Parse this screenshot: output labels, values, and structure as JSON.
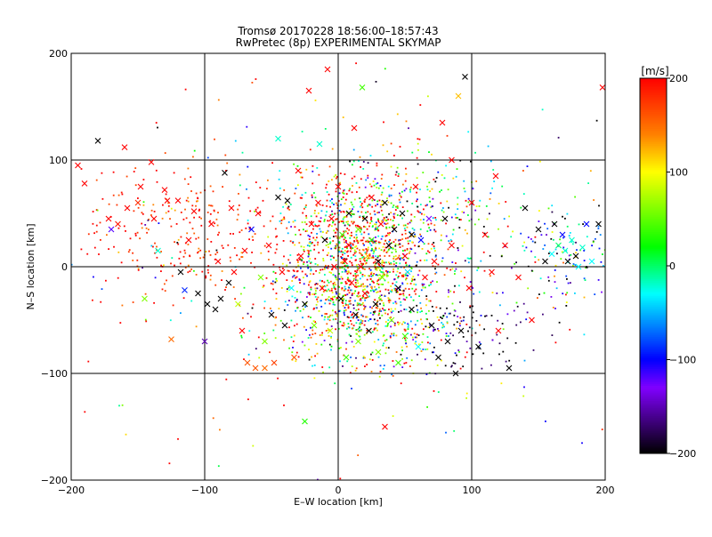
{
  "chart_data": {
    "type": "scatter",
    "title": "Tromsø 20170228 18:56:00–18:57:43",
    "subtitle": "RwPretec (8p) EXPERIMENTAL SKYMAP",
    "xlabel": "E–W location [km]",
    "ylabel": "N–S location [km]",
    "xlim": [
      -200,
      200
    ],
    "ylim": [
      -200,
      200
    ],
    "xticks": [
      -200,
      -100,
      0,
      100,
      200
    ],
    "yticks": [
      -200,
      -100,
      0,
      100,
      200
    ],
    "xtick_labels": [
      "−200",
      "−100",
      "0",
      "100",
      "200"
    ],
    "ytick_labels": [
      "−200",
      "−100",
      "0",
      "100",
      "200"
    ],
    "grid": true,
    "colorbar": {
      "unit_label": "[m/s]",
      "min": -200,
      "max": 200,
      "ticks": [
        200,
        100,
        0,
        -100,
        -200
      ],
      "tick_labels": [
        "200",
        "100",
        "0",
        "−100",
        "−200"
      ],
      "colormap_stops": [
        {
          "value": -200,
          "color": "#000000"
        },
        {
          "value": -130,
          "color": "#8000ff"
        },
        {
          "value": -100,
          "color": "#0000ff"
        },
        {
          "value": -30,
          "color": "#00ffff"
        },
        {
          "value": 20,
          "color": "#00ff00"
        },
        {
          "value": 100,
          "color": "#ffff00"
        },
        {
          "value": 140,
          "color": "#ff8000"
        },
        {
          "value": 200,
          "color": "#ff0000"
        }
      ]
    },
    "markers": [
      {
        "x": -195,
        "y": 95,
        "v": 200,
        "m": "x"
      },
      {
        "x": -190,
        "y": 78,
        "v": 200,
        "m": "x"
      },
      {
        "x": -180,
        "y": 118,
        "v": -200,
        "m": "x"
      },
      {
        "x": -172,
        "y": 45,
        "v": 200,
        "m": "x"
      },
      {
        "x": -170,
        "y": 35,
        "v": -120,
        "m": "x"
      },
      {
        "x": -165,
        "y": 40,
        "v": 190,
        "m": "x"
      },
      {
        "x": -160,
        "y": 112,
        "v": 200,
        "m": "x"
      },
      {
        "x": -158,
        "y": 55,
        "v": 200,
        "m": "x"
      },
      {
        "x": -150,
        "y": 60,
        "v": 180,
        "m": "x"
      },
      {
        "x": -148,
        "y": 75,
        "v": 200,
        "m": "x"
      },
      {
        "x": -145,
        "y": -30,
        "v": 60,
        "m": "x"
      },
      {
        "x": -140,
        "y": 98,
        "v": 200,
        "m": "x"
      },
      {
        "x": -138,
        "y": 45,
        "v": 200,
        "m": "x"
      },
      {
        "x": -135,
        "y": 15,
        "v": -20,
        "m": "x"
      },
      {
        "x": -130,
        "y": 72,
        "v": 200,
        "m": "x"
      },
      {
        "x": -128,
        "y": 62,
        "v": 200,
        "m": "x"
      },
      {
        "x": -125,
        "y": -68,
        "v": 150,
        "m": "x"
      },
      {
        "x": -120,
        "y": 62,
        "v": 200,
        "m": "x"
      },
      {
        "x": -118,
        "y": -5,
        "v": -200,
        "m": "x"
      },
      {
        "x": -115,
        "y": -22,
        "v": -90,
        "m": "x"
      },
      {
        "x": -112,
        "y": 25,
        "v": 200,
        "m": "x"
      },
      {
        "x": -108,
        "y": 52,
        "v": 200,
        "m": "x"
      },
      {
        "x": -105,
        "y": -25,
        "v": -200,
        "m": "x"
      },
      {
        "x": -100,
        "y": -70,
        "v": -150,
        "m": "x"
      },
      {
        "x": -98,
        "y": -35,
        "v": -200,
        "m": "x"
      },
      {
        "x": -95,
        "y": 40,
        "v": 200,
        "m": "x"
      },
      {
        "x": -92,
        "y": -40,
        "v": -200,
        "m": "x"
      },
      {
        "x": -90,
        "y": 5,
        "v": 200,
        "m": "x"
      },
      {
        "x": -88,
        "y": -30,
        "v": -200,
        "m": "x"
      },
      {
        "x": -85,
        "y": 88,
        "v": -200,
        "m": "x"
      },
      {
        "x": -82,
        "y": -15,
        "v": -200,
        "m": "x"
      },
      {
        "x": -80,
        "y": 55,
        "v": 200,
        "m": "x"
      },
      {
        "x": -78,
        "y": -5,
        "v": 200,
        "m": "x"
      },
      {
        "x": -75,
        "y": -35,
        "v": 80,
        "m": "x"
      },
      {
        "x": -72,
        "y": -60,
        "v": 200,
        "m": "x"
      },
      {
        "x": -70,
        "y": 15,
        "v": 200,
        "m": "x"
      },
      {
        "x": -68,
        "y": -90,
        "v": 160,
        "m": "x"
      },
      {
        "x": -65,
        "y": 35,
        "v": -100,
        "m": "x"
      },
      {
        "x": -62,
        "y": -95,
        "v": 160,
        "m": "x"
      },
      {
        "x": -60,
        "y": 50,
        "v": 200,
        "m": "x"
      },
      {
        "x": -58,
        "y": -10,
        "v": 60,
        "m": "x"
      },
      {
        "x": -55,
        "y": -70,
        "v": 60,
        "m": "x"
      },
      {
        "x": -55,
        "y": -95,
        "v": 150,
        "m": "x"
      },
      {
        "x": -52,
        "y": 20,
        "v": 200,
        "m": "x"
      },
      {
        "x": -50,
        "y": -45,
        "v": -200,
        "m": "x"
      },
      {
        "x": -48,
        "y": -90,
        "v": 170,
        "m": "x"
      },
      {
        "x": -45,
        "y": 65,
        "v": -200,
        "m": "x"
      },
      {
        "x": -45,
        "y": 120,
        "v": -20,
        "m": "x"
      },
      {
        "x": -42,
        "y": -5,
        "v": 200,
        "m": "x"
      },
      {
        "x": -40,
        "y": -55,
        "v": -200,
        "m": "x"
      },
      {
        "x": -38,
        "y": 62,
        "v": -200,
        "m": "x"
      },
      {
        "x": -35,
        "y": -20,
        "v": -30,
        "m": "x"
      },
      {
        "x": -33,
        "y": -85,
        "v": 160,
        "m": "x"
      },
      {
        "x": -30,
        "y": 90,
        "v": 200,
        "m": "x"
      },
      {
        "x": -28,
        "y": 10,
        "v": 200,
        "m": "x"
      },
      {
        "x": -25,
        "y": -35,
        "v": -200,
        "m": "x"
      },
      {
        "x": -25,
        "y": -145,
        "v": 30,
        "m": "x"
      },
      {
        "x": -22,
        "y": 165,
        "v": 200,
        "m": "x"
      },
      {
        "x": -20,
        "y": 40,
        "v": 200,
        "m": "x"
      },
      {
        "x": -18,
        "y": -55,
        "v": 60,
        "m": "x"
      },
      {
        "x": -15,
        "y": 60,
        "v": 200,
        "m": "x"
      },
      {
        "x": -14,
        "y": 115,
        "v": -20,
        "m": "x"
      },
      {
        "x": -12,
        "y": -20,
        "v": 200,
        "m": "x"
      },
      {
        "x": -10,
        "y": 25,
        "v": -200,
        "m": "x"
      },
      {
        "x": -8,
        "y": 185,
        "v": 200,
        "m": "x"
      },
      {
        "x": -6,
        "y": -60,
        "v": 80,
        "m": "x"
      },
      {
        "x": -5,
        "y": 45,
        "v": 200,
        "m": "x"
      },
      {
        "x": -3,
        "y": 0,
        "v": 200,
        "m": "x"
      },
      {
        "x": 0,
        "y": 75,
        "v": 200,
        "m": "x"
      },
      {
        "x": 2,
        "y": -30,
        "v": -200,
        "m": "x"
      },
      {
        "x": 3,
        "y": 30,
        "v": 40,
        "m": "x"
      },
      {
        "x": 5,
        "y": 5,
        "v": 200,
        "m": "x"
      },
      {
        "x": 6,
        "y": -85,
        "v": 40,
        "m": "x"
      },
      {
        "x": 8,
        "y": 50,
        "v": -200,
        "m": "x"
      },
      {
        "x": 8,
        "y": 20,
        "v": 200,
        "m": "x"
      },
      {
        "x": 10,
        "y": -15,
        "v": 200,
        "m": "x"
      },
      {
        "x": 12,
        "y": 130,
        "v": 200,
        "m": "x"
      },
      {
        "x": 13,
        "y": -45,
        "v": -200,
        "m": "x"
      },
      {
        "x": 15,
        "y": 35,
        "v": 60,
        "m": "x"
      },
      {
        "x": 15,
        "y": -70,
        "v": 60,
        "m": "x"
      },
      {
        "x": 17,
        "y": 0,
        "v": 200,
        "m": "x"
      },
      {
        "x": 18,
        "y": 168,
        "v": 40,
        "m": "x"
      },
      {
        "x": 20,
        "y": 45,
        "v": -200,
        "m": "x"
      },
      {
        "x": 20,
        "y": -25,
        "v": 200,
        "m": "x"
      },
      {
        "x": 22,
        "y": 10,
        "v": 120,
        "m": "x"
      },
      {
        "x": 23,
        "y": -60,
        "v": -200,
        "m": "x"
      },
      {
        "x": 25,
        "y": 65,
        "v": 200,
        "m": "x"
      },
      {
        "x": 25,
        "y": 25,
        "v": 30,
        "m": "x"
      },
      {
        "x": 28,
        "y": -35,
        "v": -200,
        "m": "x"
      },
      {
        "x": 30,
        "y": 5,
        "v": -200,
        "m": "x"
      },
      {
        "x": 30,
        "y": -80,
        "v": 60,
        "m": "x"
      },
      {
        "x": 32,
        "y": 40,
        "v": 200,
        "m": "x"
      },
      {
        "x": 33,
        "y": -10,
        "v": 60,
        "m": "x"
      },
      {
        "x": 35,
        "y": 60,
        "v": -200,
        "m": "x"
      },
      {
        "x": 35,
        "y": -150,
        "v": 200,
        "m": "x"
      },
      {
        "x": 38,
        "y": 20,
        "v": -200,
        "m": "x"
      },
      {
        "x": 40,
        "y": -50,
        "v": 60,
        "m": "x"
      },
      {
        "x": 42,
        "y": 35,
        "v": -200,
        "m": "x"
      },
      {
        "x": 45,
        "y": -20,
        "v": -200,
        "m": "x"
      },
      {
        "x": 45,
        "y": -90,
        "v": 40,
        "m": "x"
      },
      {
        "x": 48,
        "y": 50,
        "v": -200,
        "m": "x"
      },
      {
        "x": 50,
        "y": 10,
        "v": 200,
        "m": "x"
      },
      {
        "x": 50,
        "y": -65,
        "v": 40,
        "m": "x"
      },
      {
        "x": 52,
        "y": -5,
        "v": -40,
        "m": "x"
      },
      {
        "x": 55,
        "y": 30,
        "v": -200,
        "m": "x"
      },
      {
        "x": 55,
        "y": -40,
        "v": -200,
        "m": "x"
      },
      {
        "x": 58,
        "y": 75,
        "v": 200,
        "m": "x"
      },
      {
        "x": 60,
        "y": -75,
        "v": -30,
        "m": "x"
      },
      {
        "x": 62,
        "y": 25,
        "v": -100,
        "m": "x"
      },
      {
        "x": 65,
        "y": -10,
        "v": 200,
        "m": "x"
      },
      {
        "x": 68,
        "y": 45,
        "v": -130,
        "m": "x"
      },
      {
        "x": 70,
        "y": -55,
        "v": -200,
        "m": "x"
      },
      {
        "x": 72,
        "y": 5,
        "v": 200,
        "m": "x"
      },
      {
        "x": 75,
        "y": -85,
        "v": -200,
        "m": "x"
      },
      {
        "x": 78,
        "y": 135,
        "v": 200,
        "m": "x"
      },
      {
        "x": 80,
        "y": 45,
        "v": -200,
        "m": "x"
      },
      {
        "x": 82,
        "y": -70,
        "v": -200,
        "m": "x"
      },
      {
        "x": 85,
        "y": 100,
        "v": 200,
        "m": "x"
      },
      {
        "x": 85,
        "y": 20,
        "v": 200,
        "m": "x"
      },
      {
        "x": 88,
        "y": -100,
        "v": -200,
        "m": "x"
      },
      {
        "x": 90,
        "y": 160,
        "v": 120,
        "m": "x"
      },
      {
        "x": 92,
        "y": -60,
        "v": -200,
        "m": "x"
      },
      {
        "x": 95,
        "y": 178,
        "v": -200,
        "m": "x"
      },
      {
        "x": 98,
        "y": -20,
        "v": 200,
        "m": "x"
      },
      {
        "x": 100,
        "y": 60,
        "v": 200,
        "m": "x"
      },
      {
        "x": 105,
        "y": -75,
        "v": -200,
        "m": "x"
      },
      {
        "x": 110,
        "y": 30,
        "v": 200,
        "m": "x"
      },
      {
        "x": 115,
        "y": -5,
        "v": 200,
        "m": "x"
      },
      {
        "x": 118,
        "y": 85,
        "v": 200,
        "m": "x"
      },
      {
        "x": 120,
        "y": -60,
        "v": 200,
        "m": "x"
      },
      {
        "x": 125,
        "y": 20,
        "v": 200,
        "m": "x"
      },
      {
        "x": 128,
        "y": -95,
        "v": -200,
        "m": "x"
      },
      {
        "x": 135,
        "y": -10,
        "v": 200,
        "m": "x"
      },
      {
        "x": 140,
        "y": 55,
        "v": -200,
        "m": "x"
      },
      {
        "x": 145,
        "y": -50,
        "v": 200,
        "m": "x"
      },
      {
        "x": 150,
        "y": 35,
        "v": -200,
        "m": "x"
      },
      {
        "x": 155,
        "y": 5,
        "v": -200,
        "m": "x"
      },
      {
        "x": 160,
        "y": 12,
        "v": -30,
        "m": "x"
      },
      {
        "x": 162,
        "y": 40,
        "v": -200,
        "m": "x"
      },
      {
        "x": 165,
        "y": 20,
        "v": 0,
        "m": "x"
      },
      {
        "x": 168,
        "y": 30,
        "v": -100,
        "m": "x"
      },
      {
        "x": 170,
        "y": 15,
        "v": -20,
        "m": "x"
      },
      {
        "x": 172,
        "y": 5,
        "v": -200,
        "m": "x"
      },
      {
        "x": 175,
        "y": 25,
        "v": -20,
        "m": "x"
      },
      {
        "x": 178,
        "y": 10,
        "v": -200,
        "m": "x"
      },
      {
        "x": 180,
        "y": 0,
        "v": -30,
        "m": "x"
      },
      {
        "x": 183,
        "y": 18,
        "v": -20,
        "m": "x"
      },
      {
        "x": 186,
        "y": 40,
        "v": -100,
        "m": "x"
      },
      {
        "x": 190,
        "y": 5,
        "v": -30,
        "m": "x"
      },
      {
        "x": 195,
        "y": 40,
        "v": -200,
        "m": "x"
      },
      {
        "x": 198,
        "y": 168,
        "v": 200,
        "m": "x"
      }
    ]
  }
}
